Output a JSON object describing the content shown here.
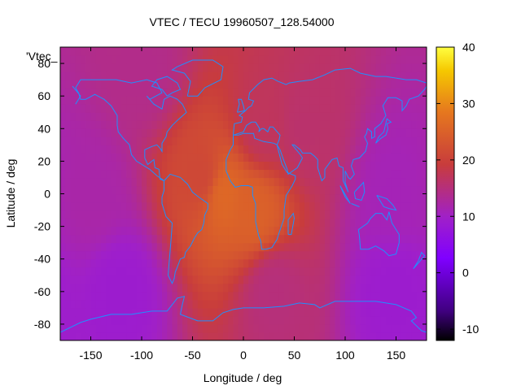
{
  "chart_data": {
    "type": "heatmap",
    "title": "VTEC / TECU 19960507_128.54000",
    "xlabel": "Longitude / deg",
    "ylabel": "Latitude / deg",
    "xlim": [
      -180,
      180
    ],
    "ylim": [
      -90,
      90
    ],
    "x_ticks": [
      -150,
      -100,
      -50,
      0,
      50,
      100,
      150
    ],
    "y_ticks": [
      80,
      60,
      40,
      20,
      0,
      -20,
      -40,
      -60,
      -80
    ],
    "colorbar": {
      "range": [
        -12,
        40
      ],
      "ticks": [
        40,
        30,
        20,
        10,
        0,
        -10
      ],
      "palette": [
        "#000000",
        "#40007f",
        "#8000ff",
        "#a020c8",
        "#c83c3c",
        "#e6781e",
        "#f5c800",
        "#ffff40"
      ]
    },
    "legend_entry": "'Vtec_",
    "grid": false,
    "overlay": "coastlines",
    "colors": {
      "coastline": "#1e90ff"
    },
    "field_description_points": [
      {
        "lon": -20,
        "lat": 0,
        "value": 26
      },
      {
        "lon": 10,
        "lat": -10,
        "value": 25
      },
      {
        "lon": -40,
        "lat": 10,
        "value": 21
      },
      {
        "lon": 20,
        "lat": 40,
        "value": 17
      },
      {
        "lon": 60,
        "lat": 40,
        "value": 16
      },
      {
        "lon": 30,
        "lat": -60,
        "value": 15
      },
      {
        "lon": -150,
        "lat": 0,
        "value": 12
      },
      {
        "lon": 150,
        "lat": 0,
        "value": 11
      },
      {
        "lon": -120,
        "lat": -60,
        "value": 9
      },
      {
        "lon": 150,
        "lat": -60,
        "value": 9
      },
      {
        "lon": -100,
        "lat": 75,
        "value": 14
      }
    ]
  }
}
